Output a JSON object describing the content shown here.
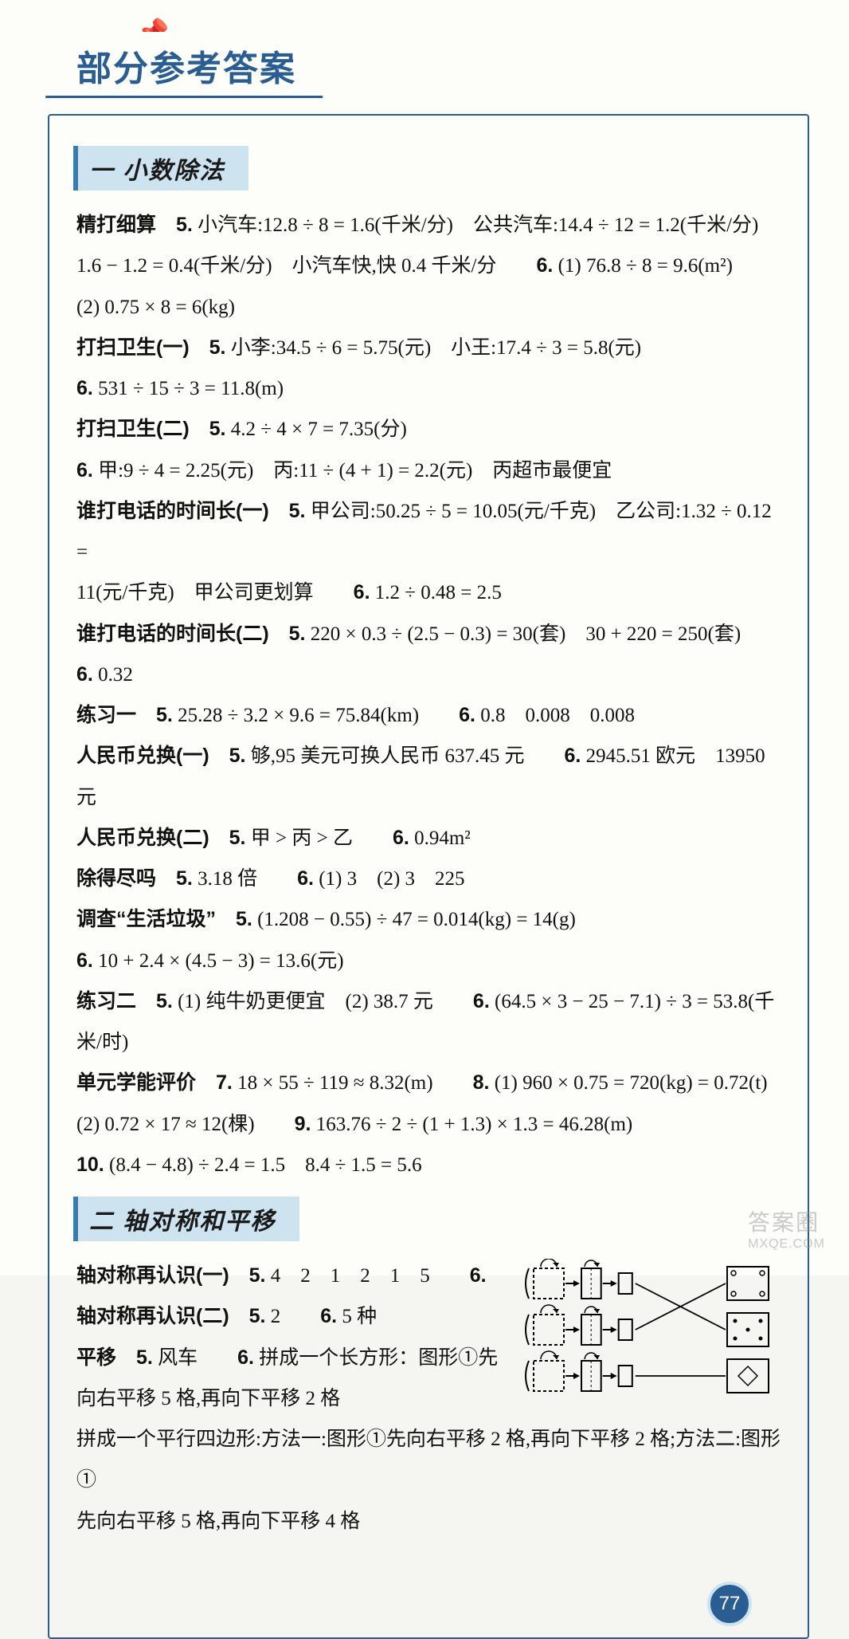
{
  "title": "部分参考答案",
  "page_number": "77",
  "watermark": {
    "line1": "答案圈",
    "line2": "MXQE.COM"
  },
  "sections": [
    {
      "header": "一 小数除法",
      "paragraphs": [
        "<span class='bold'>精打细算　5.</span> 小汽车:12.8 ÷ 8 = 1.6(千米/分)　公共汽车:14.4 ÷ 12 = 1.2(千米/分)",
        "1.6 − 1.2 = 0.4(千米/分)　小汽车快,快 0.4 千米/分　　<span class='bold'>6.</span> (1) 76.8 ÷ 8 = 9.6(m²)",
        "(2) 0.75 × 8 = 6(kg)",
        "<span class='bold'>打扫卫生(一)　5.</span> 小李:34.5 ÷ 6 = 5.75(元)　小王:17.4 ÷ 3 = 5.8(元)",
        "<span class='bold'>6.</span> 531 ÷ 15 ÷ 3 = 11.8(m)",
        "<span class='bold'>打扫卫生(二)　5.</span> 4.2 ÷ 4 × 7 = 7.35(分)",
        "<span class='bold'>6.</span> 甲:9 ÷ 4 = 2.25(元)　丙:11 ÷ (4 + 1) = 2.2(元)　丙超市最便宜",
        "<span class='bold'>谁打电话的时间长(一)　5.</span> 甲公司:50.25 ÷ 5 = 10.05(元/千克)　乙公司:1.32 ÷ 0.12 =",
        "11(元/千克)　甲公司更划算　　<span class='bold'>6.</span> 1.2 ÷ 0.48 = 2.5",
        "<span class='bold'>谁打电话的时间长(二)　5.</span> 220 × 0.3 ÷ (2.5 − 0.3) = 30(套)　30 + 220 = 250(套)",
        "<span class='bold'>6.</span> 0.32",
        "<span class='bold'>练习一　5.</span> 25.28 ÷ 3.2 × 9.6 = 75.84(km)　　<span class='bold'>6.</span> 0.8　0.008　0.008",
        "<span class='bold'>人民币兑换(一)　5.</span> 够,95 美元可换人民币 637.45 元　　<span class='bold'>6.</span> 2945.51 欧元　13950 元",
        "<span class='bold'>人民币兑换(二)　5.</span> 甲 > 丙 > 乙　　<span class='bold'>6.</span> 0.94m²",
        "<span class='bold'>除得尽吗　5.</span> 3.18 倍　　<span class='bold'>6.</span> (1) 3　(2) 3　225",
        "<span class='bold'>调查“生活垃圾”　5.</span> (1.208 − 0.55) ÷ 47 = 0.014(kg) = 14(g)",
        "<span class='bold'>6.</span> 10 + 2.4 × (4.5 − 3) = 13.6(元)",
        "<span class='bold'>练习二　5.</span> (1) 纯牛奶更便宜　(2) 38.7 元　　<span class='bold'>6.</span> (64.5 × 3 − 25 − 7.1) ÷ 3 = 53.8(千米/时)",
        "<span class='bold'>单元学能评价　7.</span> 18 × 55 ÷ 119 ≈ 8.32(m)　　<span class='bold'>8.</span> (1) 960 × 0.75 = 720(kg) = 0.72(t)",
        "(2) 0.72 × 17 ≈ 12(棵)　　<span class='bold'>9.</span> 163.76 ÷ 2 ÷ (1 + 1.3) × 1.3 = 46.28(m)",
        "<span class='bold'>10.</span> (8.4 − 4.8) ÷ 2.4 = 1.5　8.4 ÷ 1.5 = 5.6"
      ]
    },
    {
      "header": "二 轴对称和平移",
      "paragraphs": [
        "<span class='bold'>轴对称再认识(一)　5.</span> 4　2　1　2　1　5　　<span class='bold'>6.</span>",
        "<span class='bold'>轴对称再认识(二)　5.</span> 2　　<span class='bold'>6.</span> 5 种",
        "<span class='bold'>平移　5.</span> 风车　　<span class='bold'>6.</span> 拼成一个长方形：图形①先",
        "向右平移 5 格,再向下平移 2 格",
        "拼成一个平行四边形:方法一:图形①先向右平移 2 格,再向下平移 2 格;方法二:图形①",
        "先向右平移 5 格,再向下平移 4 格"
      ],
      "diagram": {
        "type": "flowchart",
        "rows": 3,
        "boxes_per_row": 3,
        "fold_arcs": true,
        "result_shapes": [
          "dotted-rect-4dots",
          "dotted-rect-5dots",
          "diamond"
        ],
        "cross_lines": [
          [
            0,
            1
          ],
          [
            1,
            0
          ],
          [
            2,
            2
          ]
        ],
        "stroke": "#000000",
        "box_size": 38
      }
    }
  ],
  "colors": {
    "border": "#2a5e92",
    "header_bg": "#cde3ef",
    "header_bar": "#3a7bb0",
    "text": "#111111",
    "page_bg": "#fdfdfa"
  },
  "typography": {
    "body_fontsize": 25,
    "line_height": 2.05,
    "title_fontsize": 44,
    "header_fontsize": 30
  }
}
